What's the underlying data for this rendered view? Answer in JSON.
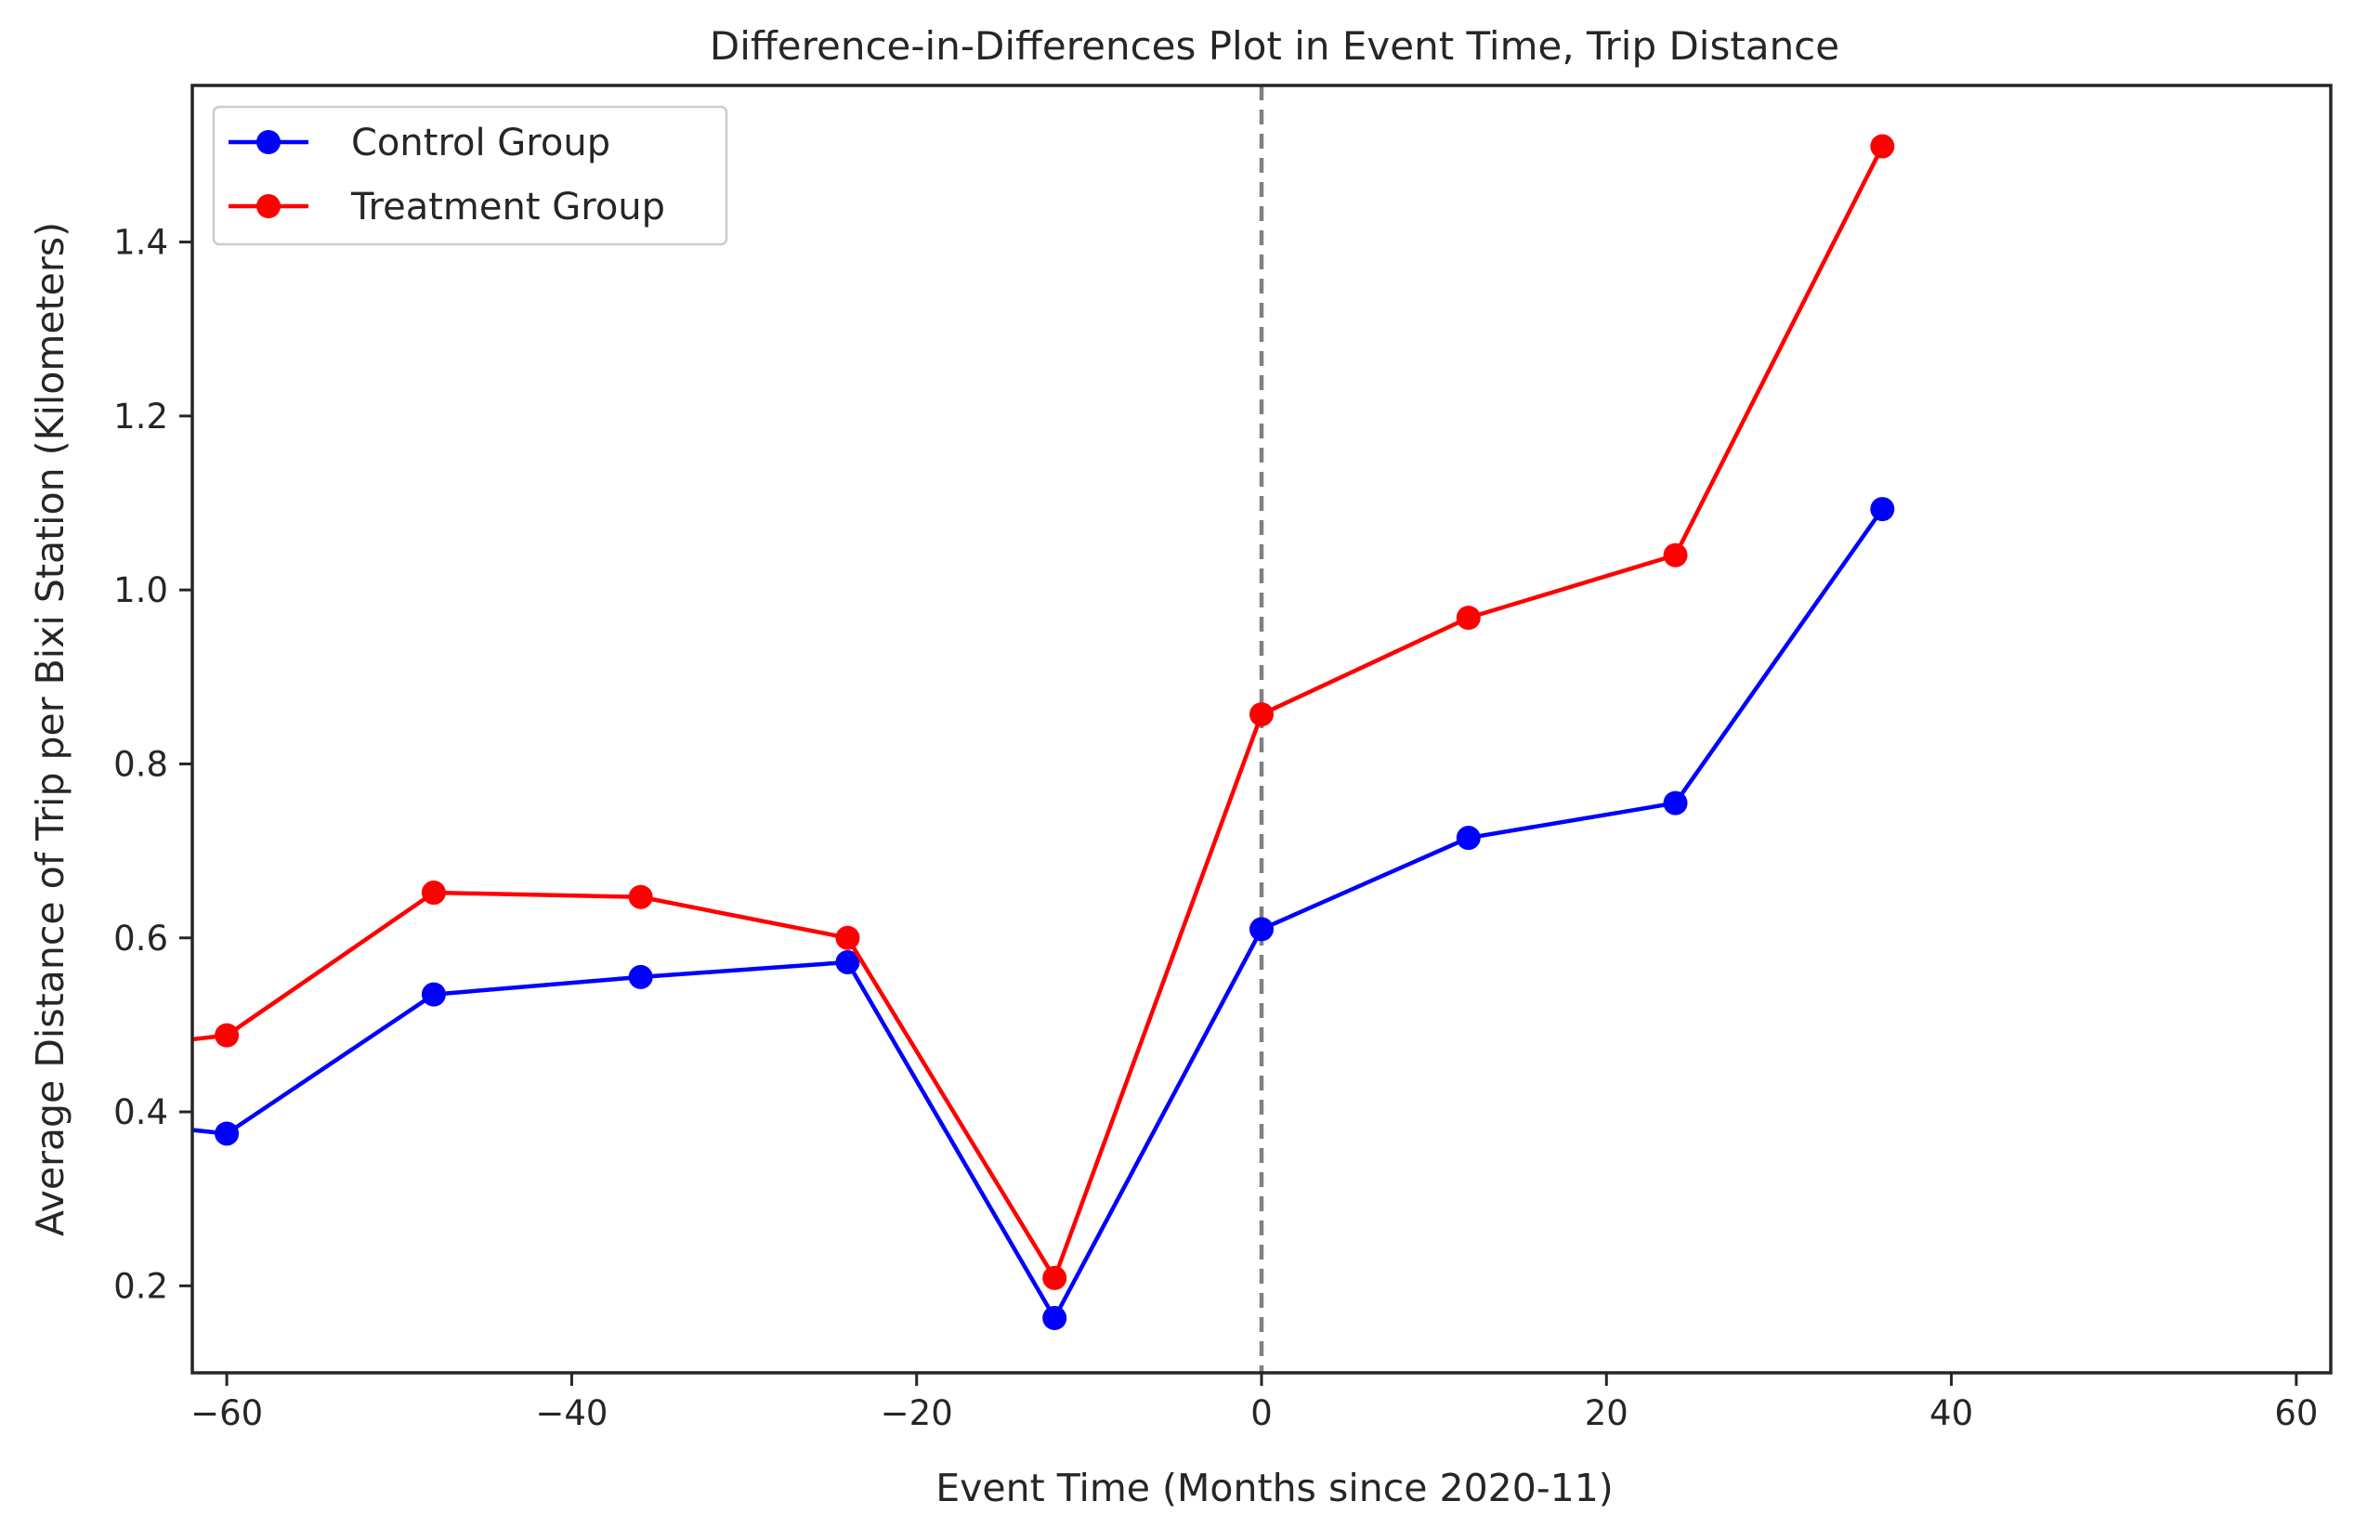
{
  "chart_data": {
    "type": "line",
    "title": "Difference-in-Differences Plot in Event Time, Trip Distance",
    "xlabel": "Event Time (Months since 2020-11)",
    "ylabel": "Average Distance of Trip per Bixi Station (Kilometers)",
    "xlim": [
      -62,
      62
    ],
    "ylim": [
      0.1,
      1.58
    ],
    "xticks": [
      -60,
      -40,
      -20,
      0,
      20,
      40,
      60
    ],
    "xtick_labels": [
      "−60",
      "−40",
      "−20",
      "0",
      "20",
      "40",
      "60"
    ],
    "yticks": [
      0.2,
      0.4,
      0.6,
      0.8,
      1.0,
      1.2,
      1.4
    ],
    "ytick_labels": [
      "0.2",
      "0.4",
      "0.6",
      "0.8",
      "1.0",
      "1.2",
      "1.4"
    ],
    "vline": {
      "x": 0,
      "color": "#808080",
      "style": "dashed"
    },
    "grid": false,
    "legend_position": "top-left",
    "series": [
      {
        "name": "Control Group",
        "color": "#0000ff",
        "x": [
          -72,
          -60,
          -48,
          -36,
          -24,
          -12,
          0,
          12,
          24,
          36
        ],
        "y": [
          0.4,
          0.375,
          0.535,
          0.555,
          0.572,
          0.163,
          0.61,
          0.715,
          0.755,
          1.093
        ]
      },
      {
        "name": "Treatment Group",
        "color": "#ff0000",
        "x": [
          -72,
          -60,
          -48,
          -36,
          -24,
          -12,
          0,
          12,
          24,
          36
        ],
        "y": [
          0.46,
          0.488,
          0.652,
          0.647,
          0.6,
          0.209,
          0.857,
          0.968,
          1.04,
          1.51
        ]
      }
    ]
  }
}
